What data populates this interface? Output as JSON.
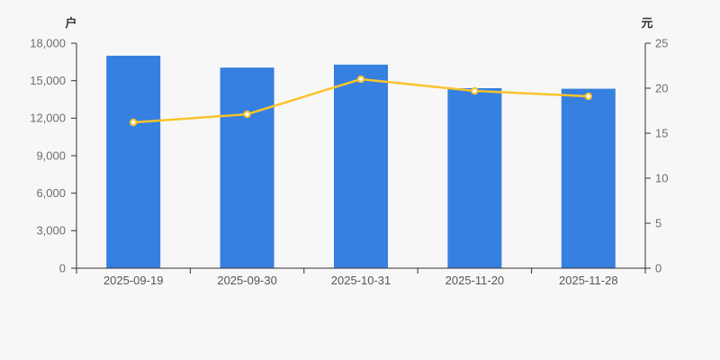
{
  "chart_data": {
    "type": "bar",
    "title": "",
    "categories": [
      "2025-09-19",
      "2025-09-30",
      "2025-10-31",
      "2025-11-20",
      "2025-11-28"
    ],
    "series": [
      {
        "id": "bar-series",
        "type": "bar",
        "axis": "left",
        "color": "#3580e0",
        "values": [
          17000,
          16050,
          16290,
          14400,
          14360
        ]
      },
      {
        "id": "line-series",
        "type": "line",
        "axis": "right",
        "color": "#fbc32b",
        "marker_fill": "#ffffff",
        "values": [
          16.2,
          17.1,
          21.0,
          19.7,
          19.1
        ]
      }
    ],
    "left_axis": {
      "name": "户",
      "min": 0,
      "max": 18000,
      "tick_labels": [
        "0",
        "3,000",
        "6,000",
        "9,000",
        "12,000",
        "15,000",
        "18,000"
      ]
    },
    "right_axis": {
      "name": "元",
      "min": 0,
      "max": 25,
      "tick_labels": [
        "0",
        "5",
        "10",
        "15",
        "20",
        "25"
      ]
    },
    "grid": false,
    "legend": false,
    "style": {
      "background": "#f7f7f7",
      "axis_line_color": "#333333",
      "tick_label_color": "#6e6e6e",
      "category_label_color": "#555555",
      "axis_name_color": "#333333"
    }
  }
}
